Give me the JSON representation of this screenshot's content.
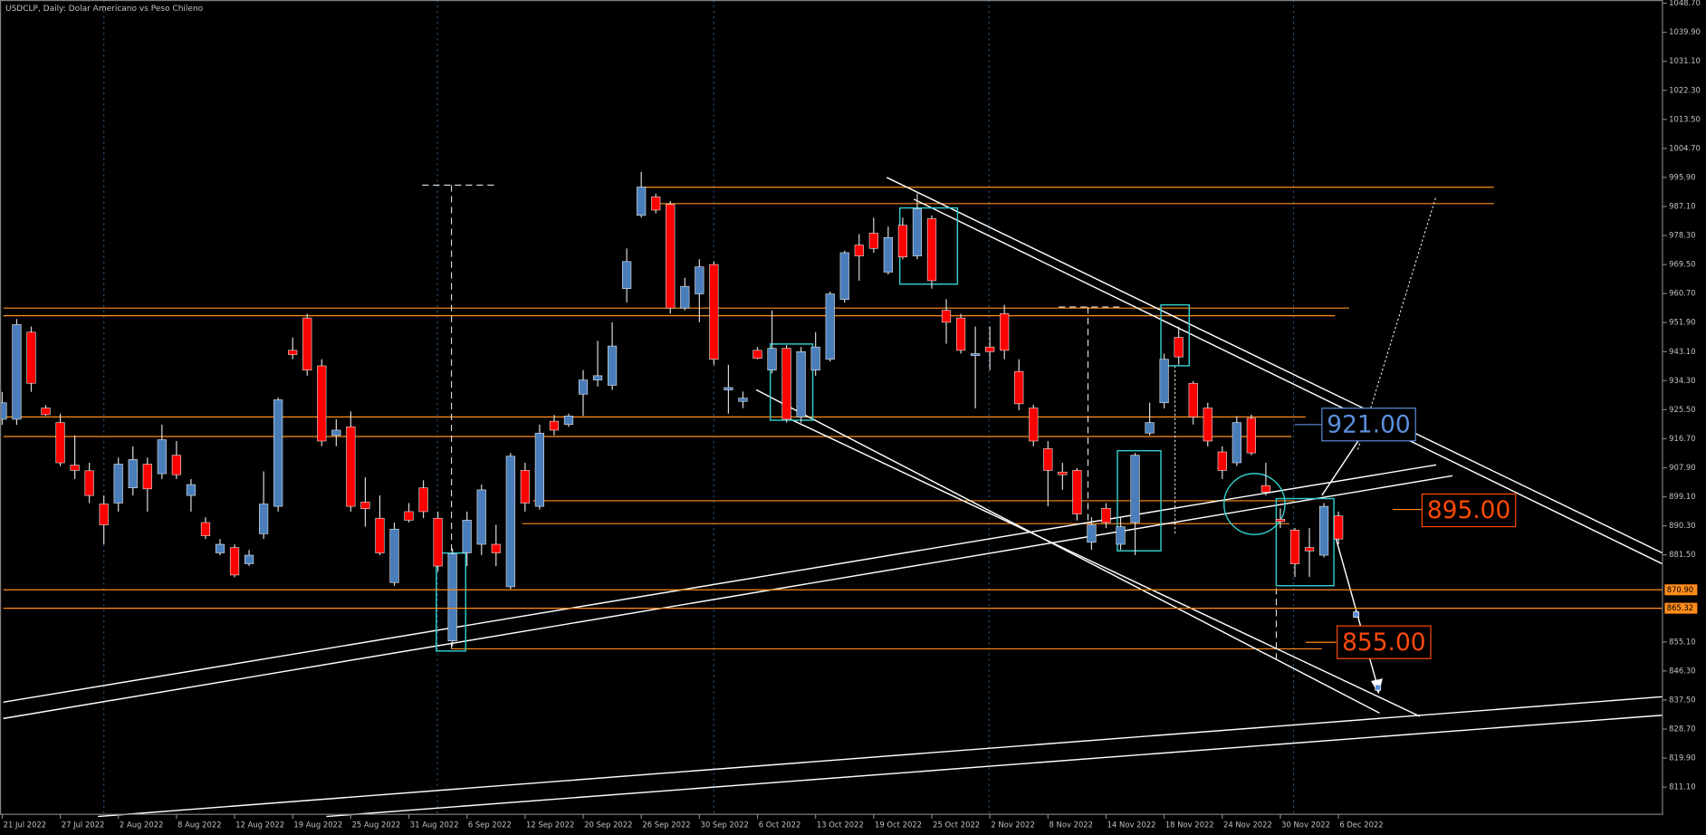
{
  "chart_data": {
    "type": "candlestick",
    "title": "USDCLP, Daily:  Dolar Americano vs Peso Chileno",
    "categories": [
      "21 Jul 2022",
      null,
      null,
      null,
      "27 Jul 2022",
      null,
      null,
      null,
      "2 Aug 2022",
      null,
      null,
      null,
      "8 Aug 2022",
      null,
      null,
      null,
      "12 Aug 2022",
      null,
      null,
      null,
      "19 Aug 2022",
      null,
      null,
      null,
      "25 Aug 2022",
      null,
      null,
      null,
      "31 Aug 2022",
      null,
      null,
      null,
      "6 Sep 2022",
      null,
      null,
      null,
      "12 Sep 2022",
      null,
      null,
      null,
      "20 Sep 2022",
      null,
      null,
      null,
      "26 Sep 2022",
      null,
      null,
      null,
      "30 Sep 2022",
      null,
      null,
      null,
      "6 Oct 2022",
      null,
      null,
      null,
      "13 Oct 2022",
      null,
      null,
      null,
      "19 Oct 2022",
      null,
      null,
      null,
      "25 Oct 2022",
      null,
      null,
      null,
      "2 Nov 2022",
      null,
      null,
      null,
      "8 Nov 2022",
      null,
      null,
      null,
      "14 Nov 2022",
      null,
      null,
      null,
      "18 Nov 2022",
      null,
      null,
      null,
      "24 Nov 2022",
      null,
      null,
      null,
      "30 Nov 2022",
      null,
      null,
      null,
      "6 Dec 2022"
    ],
    "open": [
      922.6,
      922.6,
      949,
      926,
      921.6,
      908.7,
      907,
      896.9,
      897.2,
      901.8,
      909,
      906.1,
      911.7,
      899.5,
      891.3,
      882.1,
      883.7,
      878.8,
      887.9,
      896.2,
      943.5,
      953.3,
      938.8,
      917.7,
      920.3,
      897.5,
      892.6,
      873.1,
      894.6,
      901.8,
      892.6,
      855.4,
      882.1,
      884.7,
      884.7,
      871.8,
      907.1,
      896.2,
      922,
      921,
      930.2,
      934.5,
      932.9,
      962.2,
      984.4,
      990,
      987.7,
      956.3,
      960.6,
      969.5,
      931.5,
      928,
      943.5,
      937.5,
      944.1,
      923.3,
      937.5,
      940.8,
      958.9,
      975.4,
      979,
      967.2,
      981.4,
      972.1,
      983.4,
      955.6,
      953.3,
      941.9,
      944.5,
      954.6,
      937.1,
      926,
      913.7,
      906.6,
      907.1,
      885.3,
      895.6,
      884.7,
      891.3,
      918.4,
      927.6,
      947.4,
      933.5,
      926,
      912.7,
      909.4,
      922.9,
      902.5,
      892.3,
      889,
      883.7,
      881.4,
      893.3
    ],
    "high": [
      930.9,
      953,
      950.7,
      926.9,
      924.3,
      917.7,
      909.4,
      899.5,
      911,
      914.4,
      911,
      921,
      916,
      904.5,
      892.9,
      886.3,
      884.7,
      883,
      906.8,
      929.2,
      947.4,
      954.6,
      940.8,
      922.6,
      925,
      905,
      899.5,
      891.3,
      897.2,
      904.1,
      894.6,
      883.4,
      894.6,
      902.8,
      890.6,
      912.4,
      909.4,
      921,
      923.9,
      924.3,
      937.5,
      946.4,
      952,
      974.4,
      997.6,
      991,
      988.7,
      965.5,
      971.1,
      970.5,
      939.1,
      931,
      944.5,
      955.6,
      945.1,
      944.5,
      949,
      961.3,
      973.7,
      978.7,
      983.7,
      981,
      983.7,
      991,
      984.4,
      959,
      954.6,
      950.7,
      950.7,
      957.3,
      940.8,
      927,
      916,
      909.4,
      907.8,
      892.9,
      897.2,
      892.9,
      912.4,
      927.6,
      942.5,
      950.7,
      934.2,
      927.6,
      914.4,
      923.6,
      924,
      909.4,
      895.6,
      889.6,
      889.6,
      897.2,
      894.6
    ],
    "low": [
      920.9,
      920.9,
      930.9,
      923.6,
      908.4,
      904.5,
      897.2,
      884.7,
      894.6,
      899.5,
      894.6,
      904.5,
      904.5,
      894.6,
      886.3,
      881.4,
      874.7,
      878.1,
      886.3,
      894.6,
      940.8,
      935.8,
      914.4,
      914.4,
      894.6,
      890,
      881.4,
      872.1,
      891.3,
      892.6,
      876.4,
      853.8,
      878.1,
      881.4,
      878.1,
      871.1,
      894.6,
      895.2,
      917.7,
      920.3,
      923.6,
      932.5,
      931.5,
      958,
      983.7,
      985,
      954.6,
      955.6,
      952,
      939.1,
      924.3,
      926,
      940.8,
      936.5,
      921.6,
      921.6,
      935.8,
      940.1,
      958,
      964.6,
      973.1,
      966.5,
      971.1,
      971.1,
      962.2,
      945.5,
      942.5,
      925.9,
      937.5,
      940.8,
      925.3,
      914.4,
      896.2,
      901.2,
      891.9,
      883,
      889.6,
      883,
      881.4,
      917.7,
      925.9,
      939.1,
      921,
      914.4,
      904.5,
      908.4,
      911.7,
      899.5,
      889.6,
      874.8,
      874.8,
      880.7,
      884.7
    ],
    "close": [
      927.6,
      951.3,
      933.5,
      924,
      909.4,
      907.1,
      899.5,
      890.6,
      909,
      910.4,
      901.5,
      916.4,
      905.8,
      902.8,
      887.3,
      884.7,
      875.4,
      881.4,
      896.9,
      928.5,
      942.2,
      937.5,
      916,
      919.3,
      896.2,
      895.5,
      882.1,
      889.3,
      892,
      894.6,
      878.1,
      881.8,
      892,
      901.2,
      882.1,
      911.4,
      897.2,
      918.4,
      919.3,
      923.6,
      934.5,
      935.8,
      944.8,
      970.4,
      993,
      986,
      956.3,
      962.9,
      968.8,
      940.8,
      932.2,
      929,
      941.1,
      944.1,
      922.6,
      943.1,
      944.5,
      960.6,
      973.1,
      972.1,
      974.4,
      977.7,
      971.8,
      986.4,
      964.6,
      952,
      943.5,
      942.5,
      943.1,
      943.5,
      927.3,
      916,
      907.1,
      905.8,
      893.9,
      890.6,
      891.3,
      890,
      911.7,
      921.6,
      940.8,
      941.5,
      923.3,
      916,
      907.1,
      921.6,
      912.4,
      900.5,
      891.6,
      878.8,
      882.7,
      896.2,
      886.3
    ],
    "up_color": "#4a7ebb",
    "down_color": "#ff0000",
    "ylim": [
      802.85,
      1049.69
    ],
    "yticks": [
      {
        "value": 1048.7,
        "label": "1048.70"
      },
      {
        "value": 1039.9,
        "label": "1039.90"
      },
      {
        "value": 1031.1,
        "label": "1031.10"
      },
      {
        "value": 1022.3,
        "label": "1022.30"
      },
      {
        "value": 1013.5,
        "label": "1013.50"
      },
      {
        "value": 1004.7,
        "label": "1004.70"
      },
      {
        "value": 995.9,
        "label": "995.90"
      },
      {
        "value": 987.1,
        "label": "987.10"
      },
      {
        "value": 978.3,
        "label": "978.30"
      },
      {
        "value": 969.5,
        "label": "969.50"
      },
      {
        "value": 960.7,
        "label": "960.70"
      },
      {
        "value": 951.9,
        "label": "951.90"
      },
      {
        "value": 943.1,
        "label": "943.10"
      },
      {
        "value": 934.3,
        "label": "934.30"
      },
      {
        "value": 925.5,
        "label": "925.50"
      },
      {
        "value": 916.7,
        "label": "916.70"
      },
      {
        "value": 907.9,
        "label": "907.90"
      },
      {
        "value": 899.1,
        "label": "899.10"
      },
      {
        "value": 890.3,
        "label": "890.30"
      },
      {
        "value": 881.5,
        "label": "881.50"
      },
      {
        "value": 855.1,
        "label": "855.10"
      },
      {
        "value": 846.3,
        "label": "846.30"
      },
      {
        "value": 837.5,
        "label": "837.50"
      },
      {
        "value": 828.7,
        "label": "828.70"
      },
      {
        "value": 819.9,
        "label": "819.90"
      },
      {
        "value": 811.1,
        "label": "811.10"
      }
    ],
    "price_tags": [
      {
        "value": 870.9,
        "label": "870.90"
      },
      {
        "value": 865.32,
        "label": "865.32"
      }
    ],
    "tag_color": "#ff8c1a",
    "annotations": [
      {
        "value": 921,
        "label": "921.00",
        "color": "#5b8fdc"
      },
      {
        "value": 895,
        "label": "895.00",
        "color": "#ff4a0a"
      },
      {
        "value": 855,
        "label": "855.00",
        "color": "#ff4a0a"
      }
    ]
  }
}
